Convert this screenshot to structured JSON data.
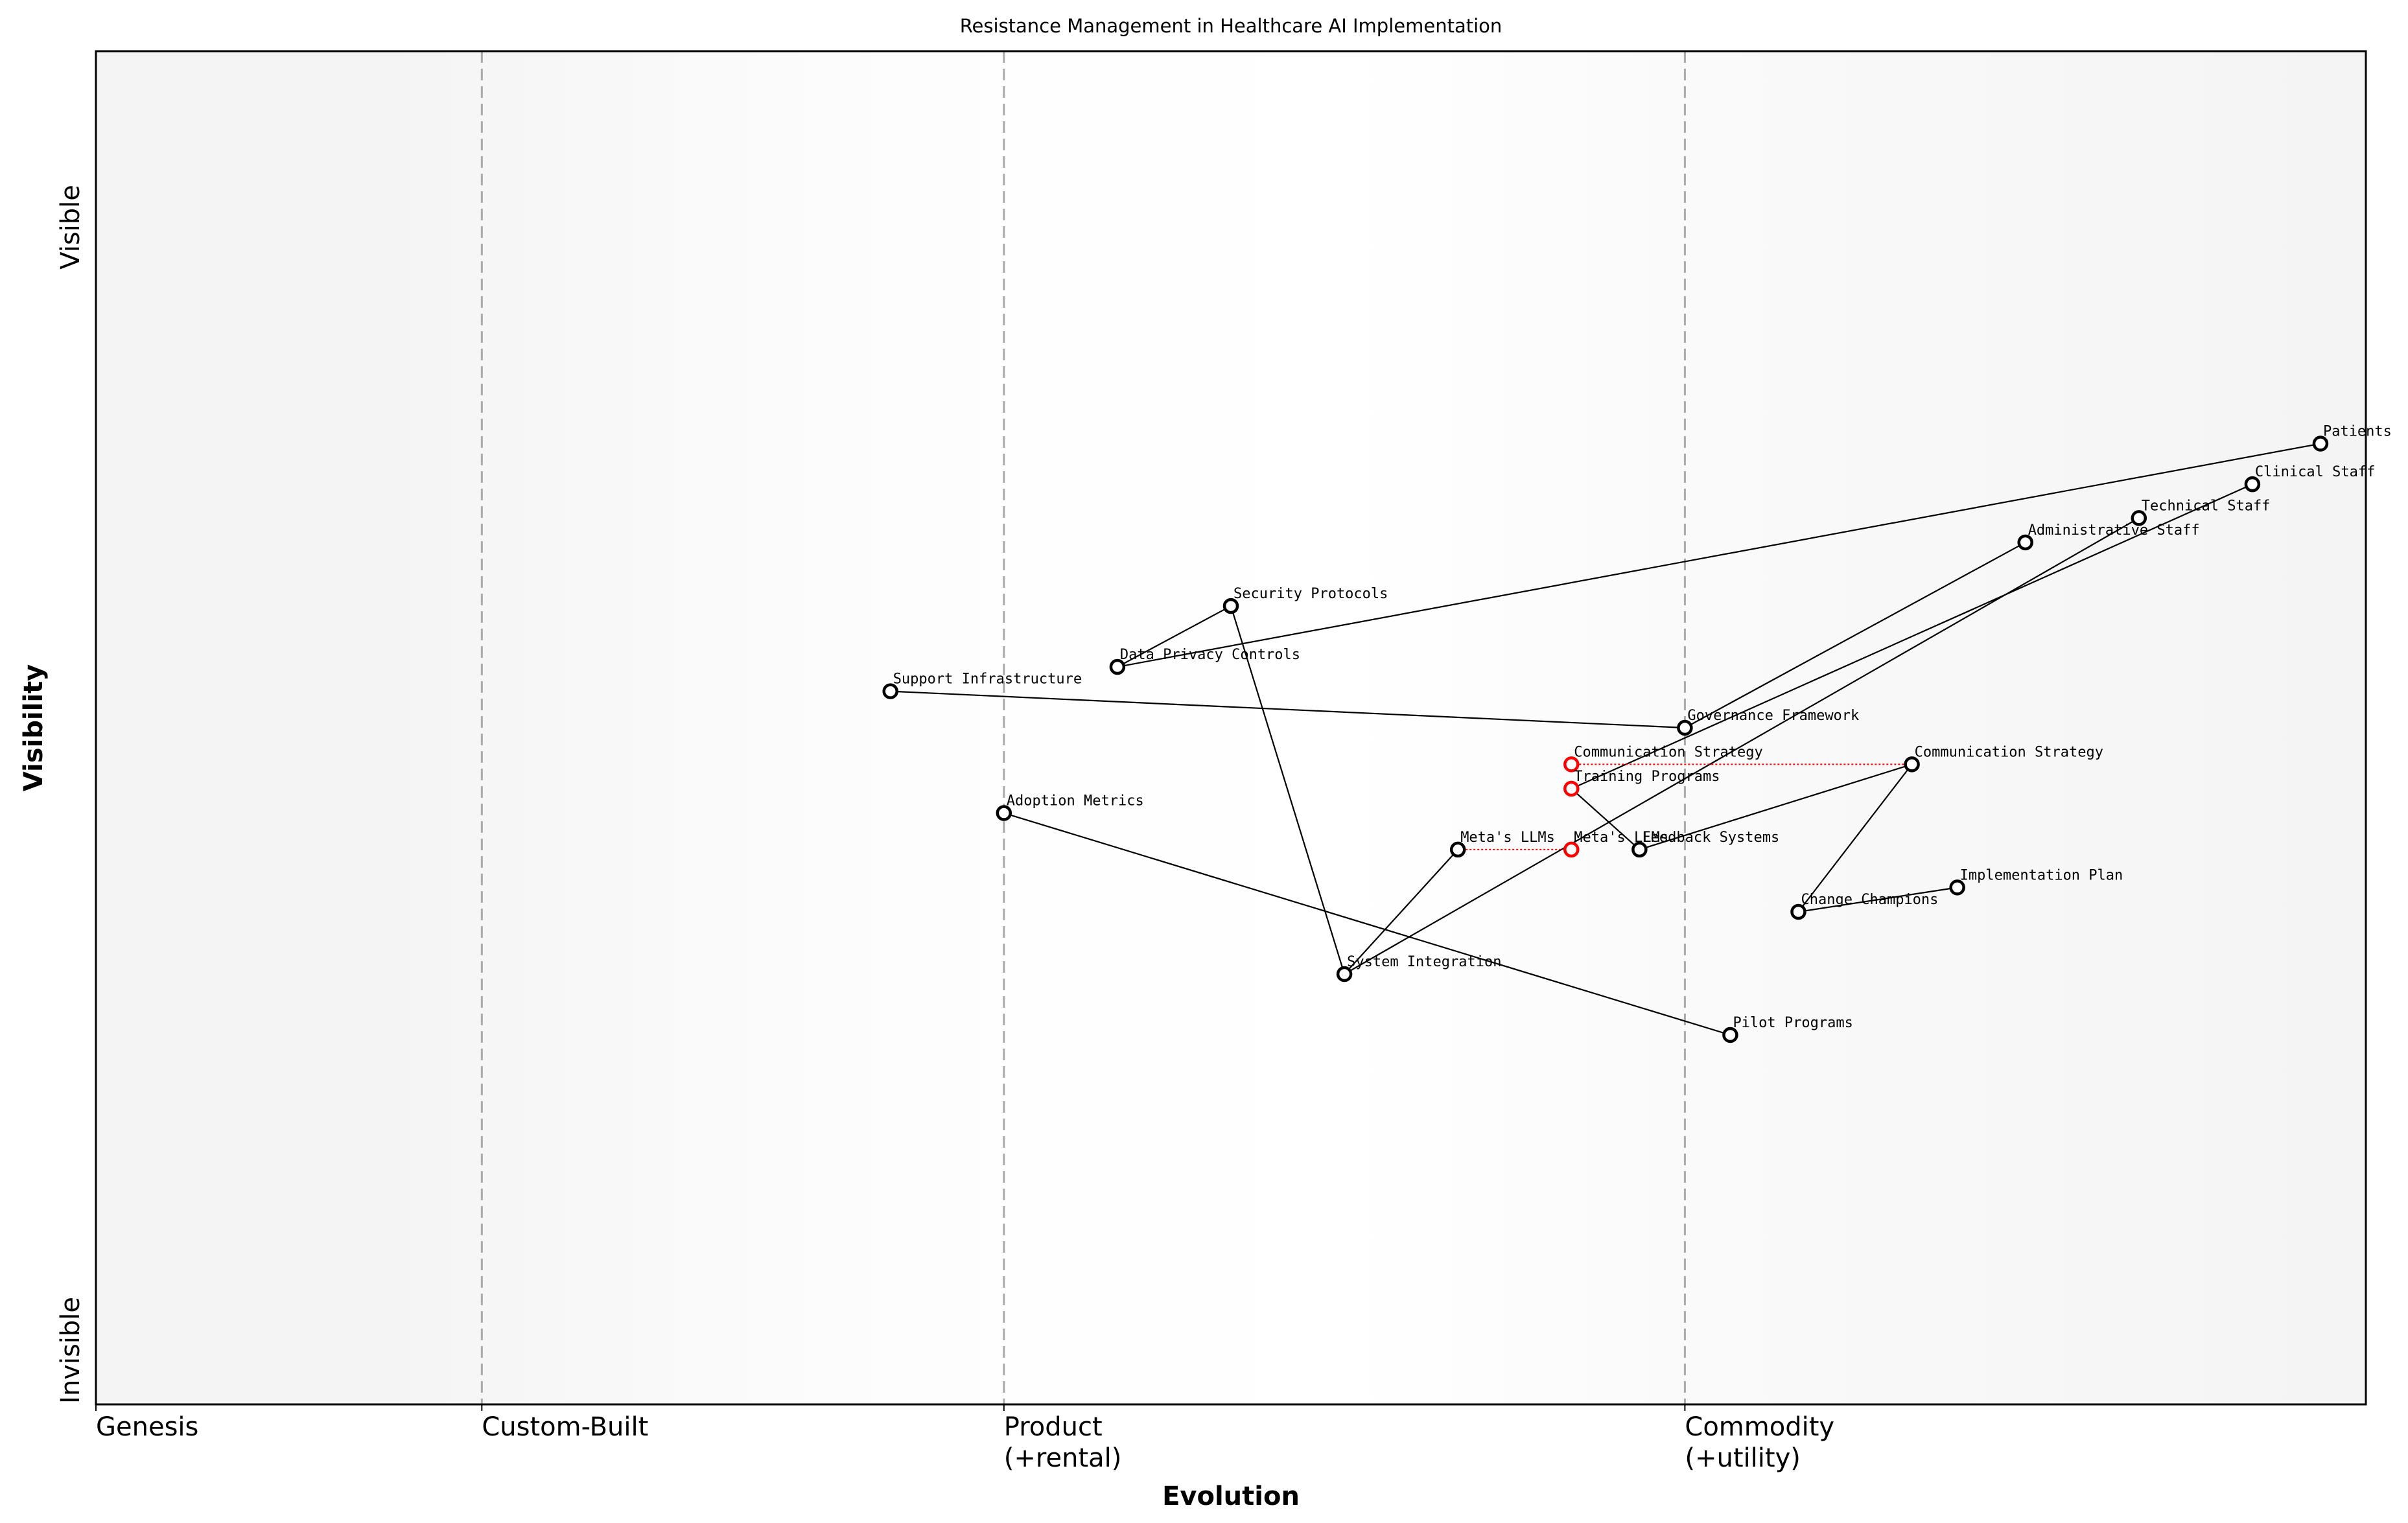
{
  "chart_data": {
    "type": "scatter",
    "subtype": "wardley-map",
    "title": "Resistance Management in Healthcare AI Implementation",
    "xlabel": "Evolution",
    "ylabel": "Visibility",
    "xlim": [
      0,
      1
    ],
    "ylim": [
      0,
      1
    ],
    "x_stages": [
      {
        "label": "Genesis",
        "x": 0.0
      },
      {
        "label": "Custom-Built",
        "x": 0.17
      },
      {
        "label": "Product\n(+rental)",
        "x": 0.4
      },
      {
        "label": "Commodity\n(+utility)",
        "x": 0.7
      }
    ],
    "y_ticks": [
      {
        "label": "Invisible",
        "y": 0.04
      },
      {
        "label": "Visible",
        "y": 0.87
      }
    ],
    "grid": false,
    "components": [
      {
        "id": "patients",
        "label": "Patients",
        "x": 0.98,
        "y": 0.71,
        "color": "#000000"
      },
      {
        "id": "clinical",
        "label": "Clinical Staff",
        "x": 0.95,
        "y": 0.68,
        "color": "#000000"
      },
      {
        "id": "technical",
        "label": "Technical Staff",
        "x": 0.9,
        "y": 0.655,
        "color": "#000000"
      },
      {
        "id": "admin",
        "label": "Administrative Staff",
        "x": 0.85,
        "y": 0.637,
        "color": "#000000"
      },
      {
        "id": "security",
        "label": "Security Protocols",
        "x": 0.5,
        "y": 0.59,
        "color": "#000000"
      },
      {
        "id": "privacy",
        "label": "Data Privacy Controls",
        "x": 0.45,
        "y": 0.545,
        "color": "#000000"
      },
      {
        "id": "support",
        "label": "Support Infrastructure",
        "x": 0.35,
        "y": 0.527,
        "color": "#000000"
      },
      {
        "id": "governance",
        "label": "Governance Framework",
        "x": 0.7,
        "y": 0.5,
        "color": "#000000"
      },
      {
        "id": "comm_red",
        "label": "Communication Strategy",
        "x": 0.65,
        "y": 0.473,
        "color": "#ff0000"
      },
      {
        "id": "comm",
        "label": "Communication Strategy",
        "x": 0.8,
        "y": 0.473,
        "color": "#000000"
      },
      {
        "id": "training",
        "label": "Training Programs",
        "x": 0.65,
        "y": 0.455,
        "color": "#ff0000"
      },
      {
        "id": "adoption",
        "label": "Adoption Metrics",
        "x": 0.4,
        "y": 0.437,
        "color": "#000000"
      },
      {
        "id": "llm",
        "label": "Meta's LLMs",
        "x": 0.6,
        "y": 0.41,
        "color": "#000000"
      },
      {
        "id": "llm_red",
        "label": "Meta's LLMs",
        "x": 0.65,
        "y": 0.41,
        "color": "#ff0000"
      },
      {
        "id": "feedback",
        "label": "Feedback Systems",
        "x": 0.68,
        "y": 0.41,
        "color": "#000000"
      },
      {
        "id": "implementation",
        "label": "Implementation Plan",
        "x": 0.82,
        "y": 0.382,
        "color": "#000000"
      },
      {
        "id": "champions",
        "label": "Change Champions",
        "x": 0.75,
        "y": 0.364,
        "color": "#000000"
      },
      {
        "id": "integration",
        "label": "System Integration",
        "x": 0.55,
        "y": 0.318,
        "color": "#000000"
      },
      {
        "id": "pilot",
        "label": "Pilot Programs",
        "x": 0.72,
        "y": 0.273,
        "color": "#000000"
      }
    ],
    "links": [
      [
        "patients",
        "privacy"
      ],
      [
        "privacy",
        "security"
      ],
      [
        "security",
        "integration"
      ],
      [
        "integration",
        "llm"
      ],
      [
        "integration",
        "technical"
      ],
      [
        "clinical",
        "training"
      ],
      [
        "admin",
        "governance"
      ],
      [
        "governance",
        "support"
      ],
      [
        "training",
        "feedback"
      ],
      [
        "feedback",
        "comm"
      ],
      [
        "comm",
        "champions"
      ],
      [
        "champions",
        "implementation"
      ],
      [
        "adoption",
        "pilot"
      ]
    ],
    "evolve_links": [
      [
        "comm_red",
        "comm"
      ],
      [
        "llm",
        "llm_red"
      ]
    ],
    "colors": {
      "evolve": "#ff0000",
      "stage_line": "#aaaaaa",
      "edge_band": "#f5f5f5"
    }
  }
}
